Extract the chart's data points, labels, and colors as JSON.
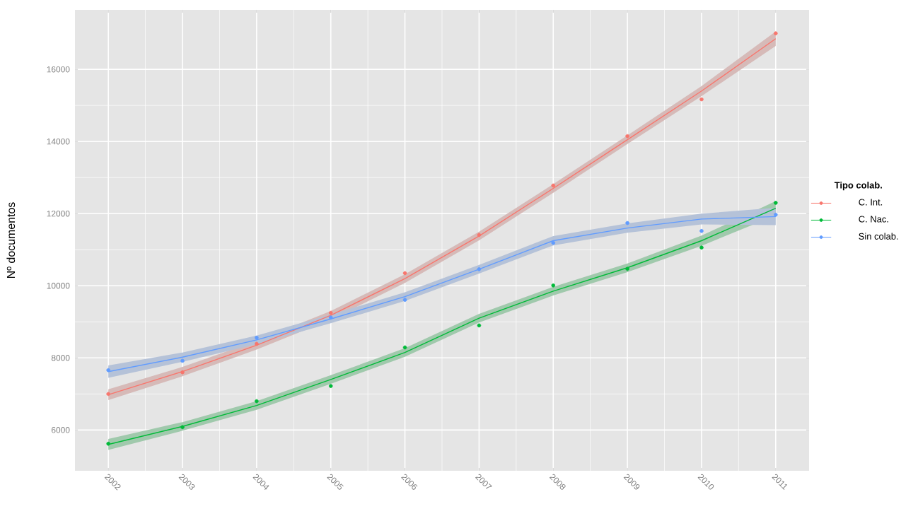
{
  "chart_data": {
    "type": "scatter",
    "ylabel": "Nº documentos",
    "legend_title": "Tipo colab.",
    "x": [
      2002,
      2003,
      2004,
      2005,
      2006,
      2007,
      2008,
      2009,
      2010,
      2011
    ],
    "xlim": [
      2001.55,
      2011.45
    ],
    "xticks": [
      2002,
      2003,
      2004,
      2005,
      2006,
      2007,
      2008,
      2009,
      2010,
      2011
    ],
    "ylim": [
      4870,
      17650
    ],
    "yticks": [
      6000,
      8000,
      10000,
      12000,
      14000,
      16000
    ],
    "grid": true,
    "legend": "right",
    "marker": "circle",
    "series": [
      {
        "name": "C. Int.",
        "color": "#f8766d",
        "values": [
          7000,
          7600,
          8390,
          9250,
          10350,
          11410,
          12780,
          14150,
          15170,
          17000
        ]
      },
      {
        "name": "C. Nac.",
        "color": "#00ba38",
        "values": [
          5620,
          6080,
          6800,
          7220,
          8290,
          8900,
          10010,
          10470,
          11060,
          12300
        ]
      },
      {
        "name": "Sin colab.",
        "color": "#619cff",
        "values": [
          7660,
          7920,
          8560,
          9120,
          9610,
          10460,
          11190,
          11740,
          11520,
          11970
        ]
      },
      {
        "type": "line",
        "marker": "none",
        "color": "#f8766d",
        "values": [
          6980,
          7620,
          8350,
          9180,
          10200,
          11380,
          12700,
          14050,
          15400,
          16850
        ],
        "lower": [
          6830,
          7490,
          8230,
          9060,
          10080,
          11260,
          12580,
          13930,
          15260,
          16650
        ],
        "upper": [
          7130,
          7750,
          8470,
          9300,
          10320,
          11500,
          12820,
          14170,
          15540,
          17050
        ]
      },
      {
        "type": "line",
        "marker": "none",
        "color": "#00ba38",
        "values": [
          5600,
          6100,
          6680,
          7400,
          8150,
          9100,
          9850,
          10500,
          11250,
          12150
        ],
        "lower": [
          5450,
          5980,
          6560,
          7280,
          8030,
          8980,
          9730,
          10380,
          11110,
          11950
        ],
        "upper": [
          5750,
          6220,
          6800,
          7520,
          8270,
          9220,
          9970,
          10620,
          11390,
          12350
        ]
      },
      {
        "type": "line",
        "marker": "none",
        "color": "#619cff",
        "values": [
          7620,
          8020,
          8500,
          9080,
          9700,
          10460,
          11250,
          11600,
          11850,
          11920
        ],
        "lower": [
          7450,
          7890,
          8380,
          8960,
          9580,
          10340,
          11120,
          11470,
          11700,
          11680
        ],
        "upper": [
          7790,
          8150,
          8620,
          9200,
          9820,
          10580,
          11380,
          11730,
          12000,
          12160
        ]
      }
    ]
  }
}
